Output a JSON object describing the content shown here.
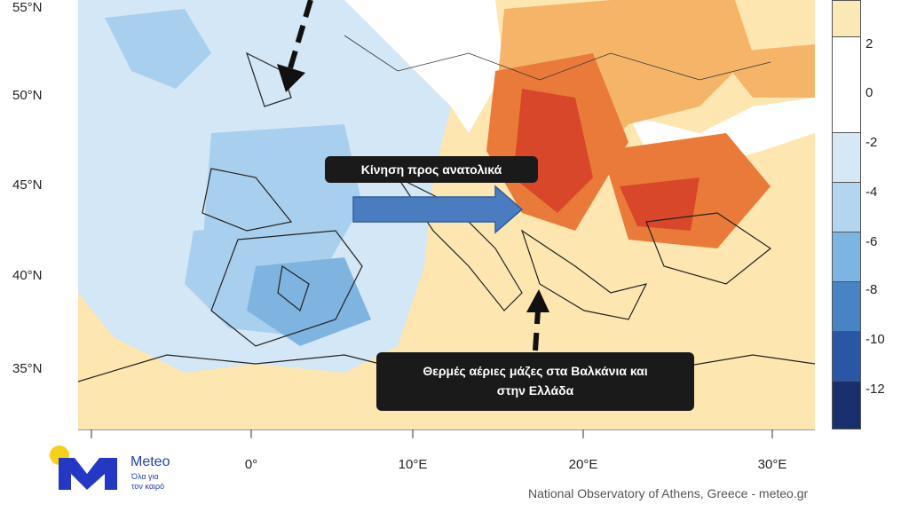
{
  "map": {
    "latitude_labels": [
      "55°N",
      "50°N",
      "45°N",
      "40°N",
      "35°N"
    ],
    "longitude_labels": [
      "0°",
      "10°E",
      "20°E",
      "30°E"
    ],
    "callouts": {
      "eastward_motion": "Κίνηση προς ανατολικά",
      "warm_air_line1": "Θερμές αέριες μάζες στα Βαλκάνια και",
      "warm_air_line2": "στην Ελλάδα"
    },
    "colors": {
      "cold_light": "#d4e7f6",
      "cold_mid": "#a9cfee",
      "cold_strong": "#7fb4e1",
      "neutral": "#ffffff",
      "warm_light": "#fde6b0",
      "warm_mid": "#f6b469",
      "warm_strong": "#ea7a3a",
      "warm_hot": "#d9472b",
      "arrow": "#4a7cc0",
      "callout_bg": "#1a1a1a"
    }
  },
  "colorbar": {
    "labels": [
      "2",
      "0",
      "-2",
      "-4",
      "-6",
      "-8",
      "-10",
      "-12"
    ],
    "colors": [
      "#fbe8b7",
      "#ffffff",
      "#d6e8f6",
      "#b3d5f0",
      "#7db5e2",
      "#4883c4",
      "#2957a5",
      "#1a2f6e"
    ]
  },
  "branding": {
    "logo_name": "Meteo",
    "logo_tagline_line1": "Όλα για",
    "logo_tagline_line2": "τον καιρό",
    "credit": "National Observatory of Athens, Greece - meteo.gr"
  }
}
